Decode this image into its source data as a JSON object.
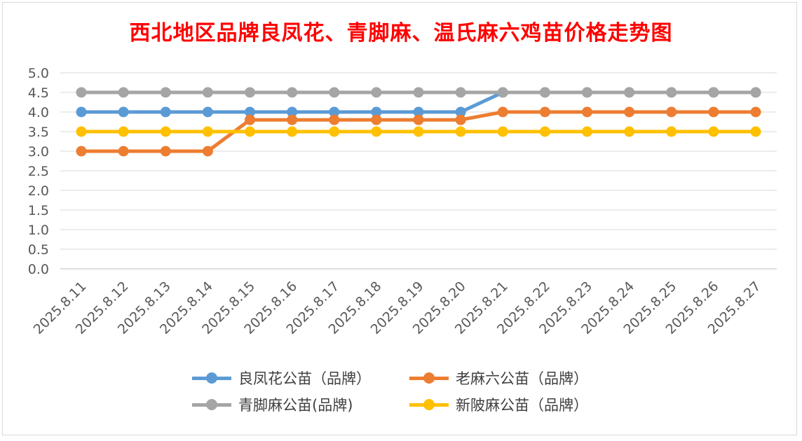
{
  "chart_data": {
    "type": "line",
    "title": "西北地区品牌良凤花、青脚麻、温氏麻六鸡苗价格走势图",
    "x": [
      "2025.8.11",
      "2025.8.12",
      "2025.8.13",
      "2025.8.14",
      "2025.8.15",
      "2025.8.16",
      "2025.8.17",
      "2025.8.18",
      "2025.8.19",
      "2025.8.20",
      "2025.8.21",
      "2025.8.22",
      "2025.8.23",
      "2025.8.24",
      "2025.8.25",
      "2025.8.26",
      "2025.8.27"
    ],
    "yticks": [
      "0.0",
      "0.5",
      "1.0",
      "1.5",
      "2.0",
      "2.5",
      "3.0",
      "3.5",
      "4.0",
      "4.5",
      "5.0"
    ],
    "ylim": [
      0,
      5
    ],
    "grid": true,
    "legend_position": "bottom",
    "series": [
      {
        "name": "良凤花公苗（品牌）",
        "color": "#5b9bd5",
        "values": [
          4.0,
          4.0,
          4.0,
          4.0,
          4.0,
          4.0,
          4.0,
          4.0,
          4.0,
          4.0,
          4.5,
          4.5,
          4.5,
          4.5,
          4.5,
          4.5,
          4.5
        ]
      },
      {
        "name": "老麻六公苗（品牌）",
        "color": "#ed7d31",
        "values": [
          3.0,
          3.0,
          3.0,
          3.0,
          3.8,
          3.8,
          3.8,
          3.8,
          3.8,
          3.8,
          4.0,
          4.0,
          4.0,
          4.0,
          4.0,
          4.0,
          4.0
        ]
      },
      {
        "name": "青脚麻公苗(品牌)",
        "color": "#a5a5a5",
        "values": [
          4.5,
          4.5,
          4.5,
          4.5,
          4.5,
          4.5,
          4.5,
          4.5,
          4.5,
          4.5,
          4.5,
          4.5,
          4.5,
          4.5,
          4.5,
          4.5,
          4.5
        ]
      },
      {
        "name": "新陂麻公苗（品牌）",
        "color": "#ffc000",
        "values": [
          3.5,
          3.5,
          3.5,
          3.5,
          3.5,
          3.5,
          3.5,
          3.5,
          3.5,
          3.5,
          3.5,
          3.5,
          3.5,
          3.5,
          3.5,
          3.5,
          3.5
        ]
      }
    ]
  }
}
